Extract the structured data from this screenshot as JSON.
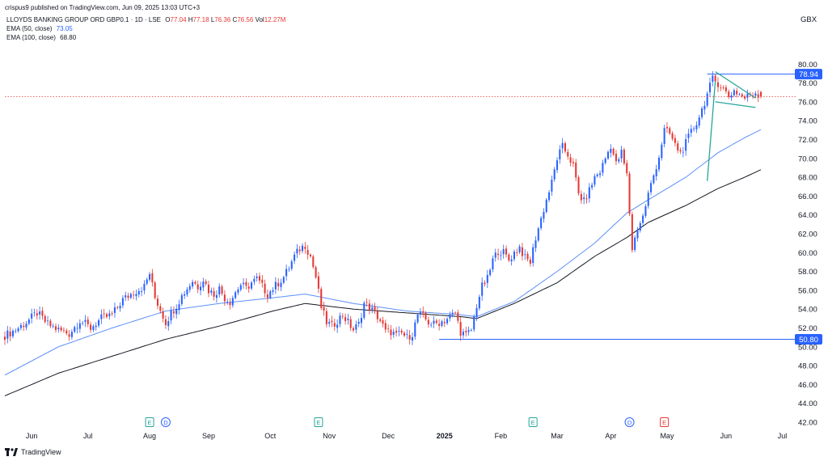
{
  "header": {
    "published": "crispus9 published on TradingView.com, Jun 09, 2025 13:03 UTC+3"
  },
  "legend": {
    "symbol": "LLOYDS BANKING GROUP ORD GBP0.1 · 1D · LSE",
    "o_label": "O",
    "o_value": "77.04",
    "h_label": "H",
    "h_value": "77.18",
    "l_label": "L",
    "l_value": "76.36",
    "c_label": "C",
    "c_value": "76.56",
    "vol_label": "Vol",
    "vol_value": "12.27M",
    "ema50_label": "EMA (50, close)",
    "ema50_value": "73.05",
    "ema100_label": "EMA (100, close)",
    "ema100_value": "68.80"
  },
  "footer": {
    "brand": "TradingView"
  },
  "colors": {
    "up": "#2962ff",
    "down": "#e53935",
    "ema50": "#5b8ff9",
    "ema100": "#131722",
    "pattern": "#26a69a",
    "level": "#2962ff"
  },
  "chart_data": {
    "type": "candlestick",
    "title": "LLOYDS BANKING GROUP ORD GBP0.1 · 1D · LSE",
    "currency_label": "GBX",
    "ylim": [
      42,
      82
    ],
    "y_ticks": [
      "42.00",
      "44.00",
      "46.00",
      "48.00",
      "50.00",
      "52.00",
      "54.00",
      "56.00",
      "58.00",
      "60.00",
      "62.00",
      "64.00",
      "66.00",
      "68.00",
      "70.00",
      "72.00",
      "74.00",
      "76.00",
      "78.00",
      "80.00"
    ],
    "x_ticks": [
      "Jun",
      "Jul",
      "Aug",
      "Sep",
      "Oct",
      "Nov",
      "Dec",
      "2025",
      "Feb",
      "Mar",
      "Apr",
      "May",
      "Jun",
      "Jul"
    ],
    "x_tick_index": [
      10,
      31,
      54,
      76,
      99,
      121,
      143,
      164,
      185,
      206,
      226,
      247,
      269,
      290
    ],
    "last_index": 282,
    "closes_anchor": [
      [
        0,
        51.2
      ],
      [
        4,
        51.8
      ],
      [
        8,
        52.6
      ],
      [
        12,
        53.6
      ],
      [
        16,
        52.4
      ],
      [
        20,
        51.8
      ],
      [
        24,
        51.4
      ],
      [
        28,
        52.8
      ],
      [
        32,
        52.0
      ],
      [
        36,
        53.0
      ],
      [
        40,
        53.4
      ],
      [
        44,
        55.0
      ],
      [
        48,
        55.8
      ],
      [
        52,
        56.4
      ],
      [
        54,
        57.8
      ],
      [
        56,
        55.2
      ],
      [
        58,
        54.0
      ],
      [
        60,
        52.6
      ],
      [
        62,
        53.6
      ],
      [
        64,
        54.4
      ],
      [
        66,
        55.4
      ],
      [
        68,
        56.2
      ],
      [
        70,
        57.0
      ],
      [
        72,
        56.4
      ],
      [
        74,
        57.2
      ],
      [
        76,
        56.0
      ],
      [
        78,
        55.6
      ],
      [
        80,
        56.2
      ],
      [
        82,
        55.2
      ],
      [
        84,
        54.8
      ],
      [
        86,
        55.8
      ],
      [
        88,
        56.6
      ],
      [
        90,
        56.2
      ],
      [
        92,
        56.8
      ],
      [
        94,
        57.2
      ],
      [
        96,
        56.4
      ],
      [
        98,
        55.6
      ],
      [
        100,
        56.2
      ],
      [
        102,
        56.8
      ],
      [
        104,
        57.4
      ],
      [
        106,
        58.4
      ],
      [
        108,
        59.6
      ],
      [
        110,
        60.4
      ],
      [
        112,
        60.8
      ],
      [
        114,
        59.6
      ],
      [
        116,
        57.4
      ],
      [
        118,
        54.2
      ],
      [
        120,
        52.6
      ],
      [
        122,
        52.2
      ],
      [
        124,
        52.8
      ],
      [
        126,
        53.4
      ],
      [
        128,
        52.6
      ],
      [
        130,
        51.8
      ],
      [
        132,
        52.4
      ],
      [
        134,
        54.6
      ],
      [
        136,
        54.2
      ],
      [
        138,
        53.6
      ],
      [
        140,
        52.8
      ],
      [
        142,
        51.6
      ],
      [
        144,
        51.6
      ],
      [
        146,
        51.2
      ],
      [
        148,
        51.4
      ],
      [
        150,
        51.0
      ],
      [
        152,
        51.4
      ],
      [
        154,
        53.4
      ],
      [
        156,
        53.2
      ],
      [
        158,
        52.6
      ],
      [
        160,
        52.4
      ],
      [
        162,
        52.6
      ],
      [
        164,
        52.8
      ],
      [
        166,
        53.2
      ],
      [
        168,
        53.6
      ],
      [
        170,
        51.6
      ],
      [
        172,
        51.2
      ],
      [
        174,
        51.8
      ],
      [
        176,
        54.4
      ],
      [
        178,
        56.4
      ],
      [
        180,
        57.2
      ],
      [
        182,
        59.2
      ],
      [
        184,
        60.2
      ],
      [
        186,
        60.0
      ],
      [
        188,
        59.2
      ],
      [
        190,
        60.0
      ],
      [
        192,
        60.6
      ],
      [
        194,
        59.4
      ],
      [
        196,
        59.0
      ],
      [
        198,
        61.6
      ],
      [
        200,
        63.6
      ],
      [
        202,
        65.6
      ],
      [
        204,
        67.4
      ],
      [
        206,
        70.0
      ],
      [
        208,
        71.2
      ],
      [
        210,
        70.4
      ],
      [
        212,
        69.2
      ],
      [
        214,
        66.2
      ],
      [
        216,
        65.4
      ],
      [
        218,
        66.6
      ],
      [
        220,
        68.0
      ],
      [
        222,
        68.6
      ],
      [
        224,
        70.0
      ],
      [
        226,
        71.4
      ],
      [
        228,
        69.4
      ],
      [
        230,
        70.6
      ],
      [
        232,
        68.2
      ],
      [
        233,
        64.2
      ],
      [
        234,
        60.4
      ],
      [
        236,
        62.6
      ],
      [
        238,
        63.8
      ],
      [
        240,
        66.2
      ],
      [
        242,
        68.2
      ],
      [
        244,
        70.2
      ],
      [
        246,
        73.0
      ],
      [
        248,
        72.6
      ],
      [
        250,
        71.4
      ],
      [
        252,
        70.6
      ],
      [
        254,
        71.6
      ],
      [
        256,
        72.8
      ],
      [
        258,
        73.8
      ],
      [
        260,
        75.2
      ],
      [
        262,
        76.8
      ],
      [
        264,
        78.4
      ],
      [
        266,
        78.0
      ],
      [
        268,
        77.4
      ],
      [
        270,
        76.6
      ],
      [
        272,
        77.2
      ],
      [
        274,
        76.8
      ],
      [
        276,
        76.4
      ],
      [
        278,
        76.8
      ],
      [
        280,
        77.0
      ],
      [
        282,
        76.56
      ]
    ],
    "ema50_anchor": [
      [
        0,
        47.0
      ],
      [
        20,
        50.0
      ],
      [
        40,
        52.0
      ],
      [
        60,
        53.8
      ],
      [
        80,
        54.6
      ],
      [
        100,
        55.2
      ],
      [
        112,
        55.6
      ],
      [
        130,
        54.6
      ],
      [
        150,
        53.8
      ],
      [
        170,
        53.4
      ],
      [
        176,
        53.2
      ],
      [
        190,
        54.8
      ],
      [
        206,
        58.0
      ],
      [
        220,
        61.0
      ],
      [
        232,
        64.2
      ],
      [
        240,
        65.6
      ],
      [
        254,
        68.0
      ],
      [
        266,
        70.6
      ],
      [
        276,
        72.2
      ],
      [
        282,
        73.05
      ]
    ],
    "ema100_anchor": [
      [
        0,
        44.8
      ],
      [
        20,
        47.2
      ],
      [
        40,
        49.0
      ],
      [
        60,
        50.8
      ],
      [
        80,
        52.2
      ],
      [
        100,
        53.8
      ],
      [
        112,
        54.6
      ],
      [
        130,
        54.0
      ],
      [
        150,
        53.6
      ],
      [
        170,
        53.2
      ],
      [
        176,
        53.0
      ],
      [
        190,
        54.6
      ],
      [
        206,
        56.8
      ],
      [
        220,
        59.6
      ],
      [
        232,
        61.6
      ],
      [
        240,
        63.2
      ],
      [
        254,
        65.0
      ],
      [
        266,
        66.8
      ],
      [
        276,
        68.0
      ],
      [
        282,
        68.8
      ]
    ],
    "levels": [
      {
        "value": 78.94,
        "label": "78.94",
        "x_start": 262
      },
      {
        "value": 50.8,
        "label": "50.80",
        "x_start": 162
      }
    ],
    "current_price": 76.56,
    "pattern": {
      "pole": [
        [
          262,
          67.6
        ],
        [
          265,
          78.2
        ]
      ],
      "upper": [
        [
          265,
          79.2
        ],
        [
          280,
          76.4
        ]
      ],
      "lower": [
        [
          265,
          76.0
        ],
        [
          280,
          75.4
        ]
      ]
    },
    "events": [
      {
        "label": "E",
        "index": 54,
        "kind": "earnings"
      },
      {
        "label": "D",
        "index": 60,
        "kind": "dividend"
      },
      {
        "label": "E",
        "index": 117,
        "kind": "earnings"
      },
      {
        "label": "E",
        "index": 197,
        "kind": "earnings"
      },
      {
        "label": "D",
        "index": 233,
        "kind": "dividend"
      },
      {
        "label": "E",
        "index": 246,
        "kind": "earnings-red"
      }
    ]
  }
}
